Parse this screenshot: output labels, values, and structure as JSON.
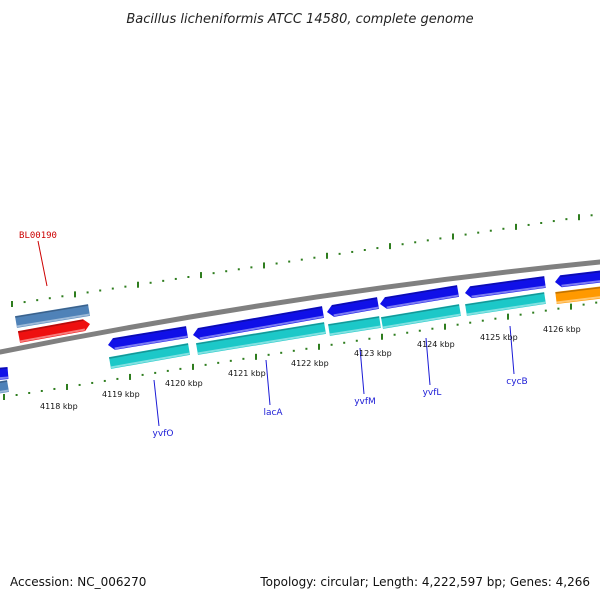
{
  "title": "Bacillus licheniformis ATCC 14580, complete genome",
  "footer": {
    "accession": "Accession: NC_006270",
    "summary": "Topology: circular; Length: 4,222,597 bp; Genes: 4,266"
  },
  "colors": {
    "backbone": "#808080",
    "tick": "#2e7d1e",
    "label_blue": "#1a1ad6",
    "label_red": "#cc0000",
    "blue": "#1010e8",
    "cyan": "#1cc8c8",
    "steel": "#4f82b8",
    "red": "#ee1010",
    "orange": "#ff9900"
  },
  "position_labels": [
    "4118 kbp",
    "4119 kbp",
    "4120 kbp",
    "4121 kbp",
    "4122 kbp",
    "4123 kbp",
    "4124 kbp",
    "4125 kbp",
    "4126 kbp"
  ],
  "gene_labels": [
    {
      "text": "BL00190",
      "style": "red"
    },
    {
      "text": "yvfO",
      "style": "blue"
    },
    {
      "text": "lacA",
      "style": "blue"
    },
    {
      "text": "yvfM",
      "style": "blue"
    },
    {
      "text": "yvfL",
      "style": "blue"
    },
    {
      "text": "cycB",
      "style": "blue"
    }
  ]
}
